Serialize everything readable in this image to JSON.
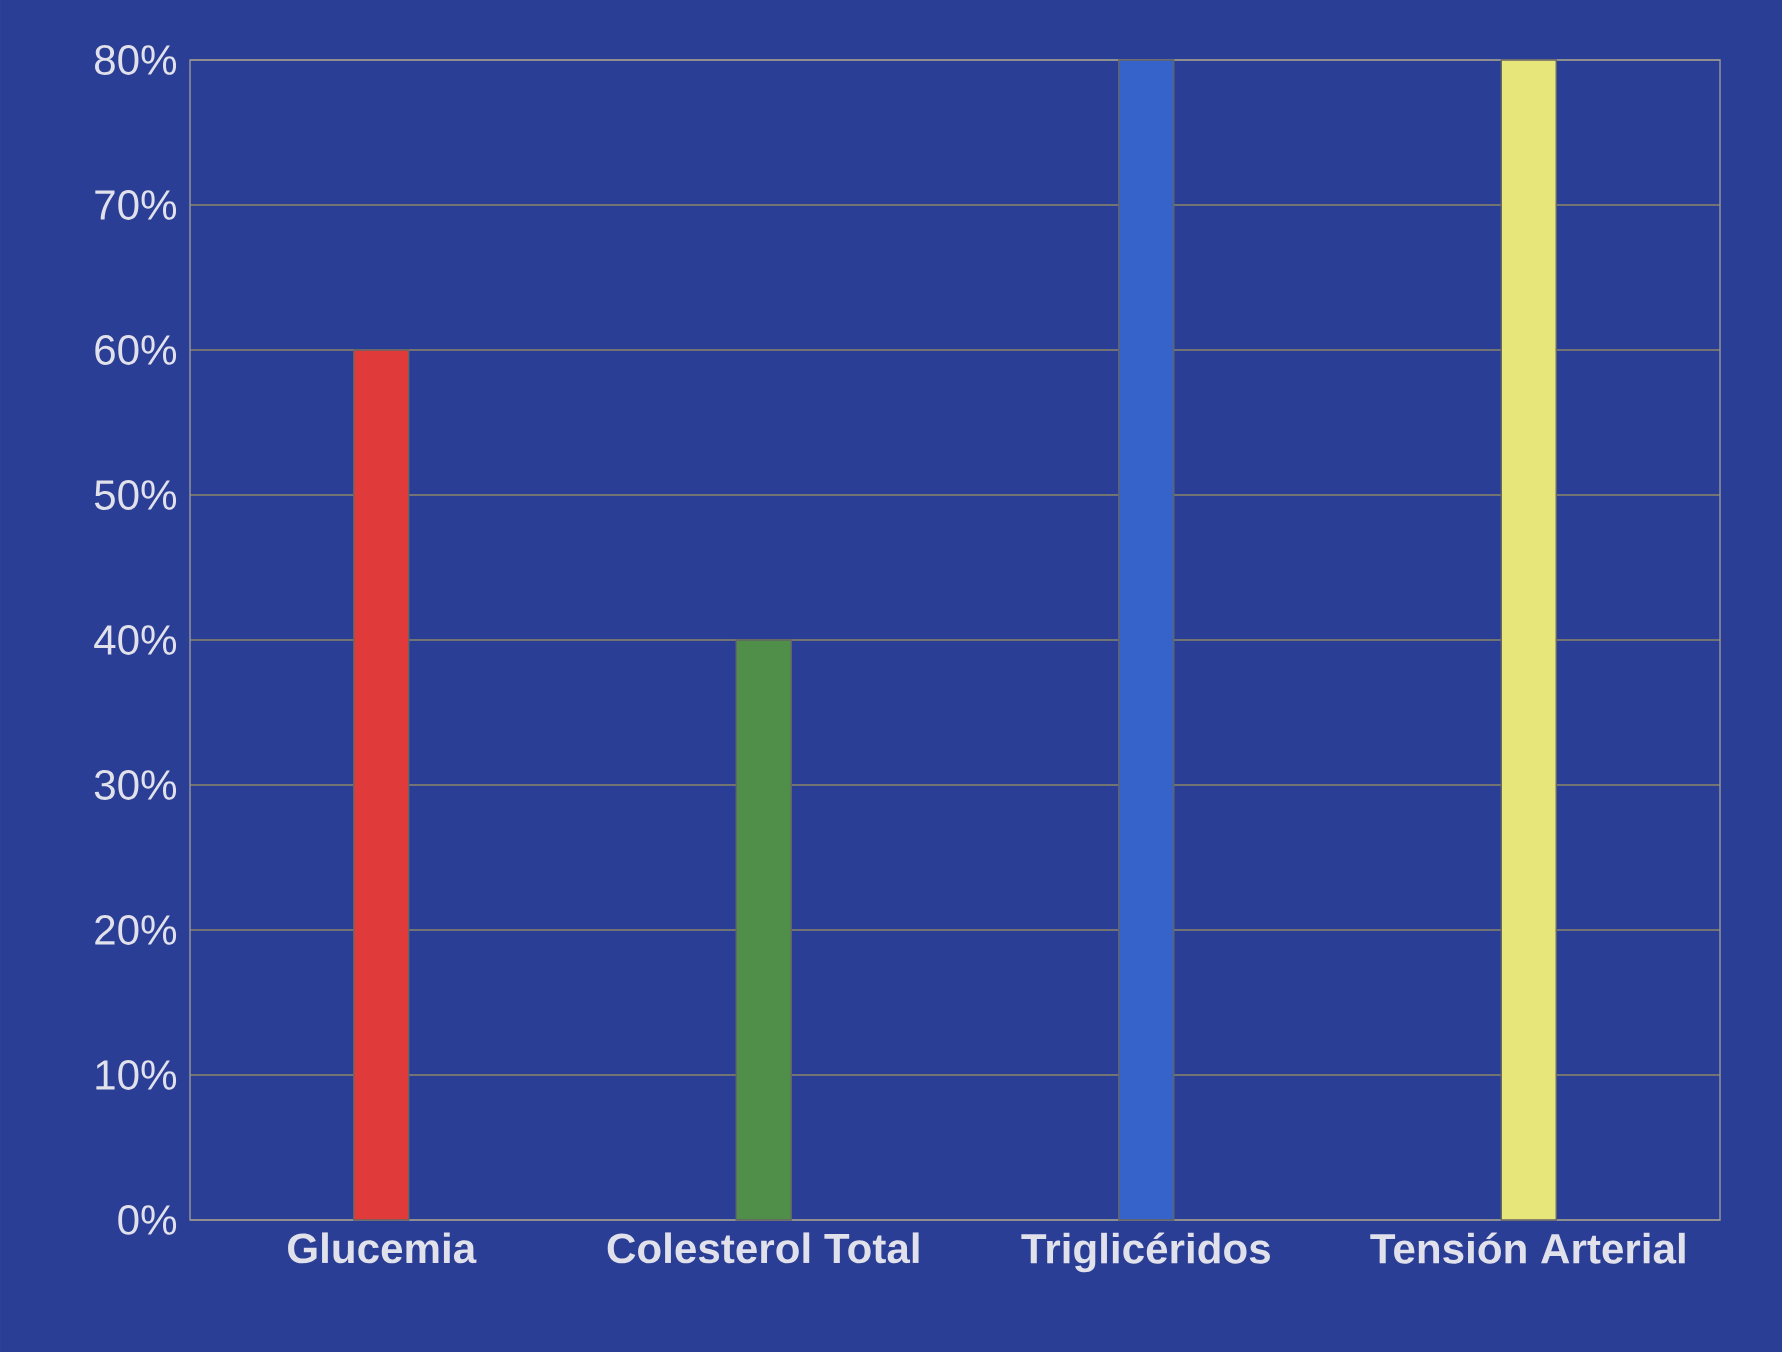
{
  "chart_data": {
    "type": "bar",
    "categories": [
      "Glucemia",
      "Colesterol Total",
      "Triglicéridos",
      "Tensión Arterial"
    ],
    "values": [
      60,
      40,
      80,
      80
    ],
    "colors": [
      "#e03a3a",
      "#4f8f4a",
      "#3563c9",
      "#e6e67a"
    ],
    "ylim": [
      0,
      80
    ],
    "yticks": [
      {
        "value": 0,
        "label": "0%"
      },
      {
        "value": 10,
        "label": "10%"
      },
      {
        "value": 20,
        "label": "20%"
      },
      {
        "value": 30,
        "label": "30%"
      },
      {
        "value": 40,
        "label": "40%"
      },
      {
        "value": 50,
        "label": "50%"
      },
      {
        "value": 60,
        "label": "60%"
      },
      {
        "value": 70,
        "label": "70%"
      },
      {
        "value": 80,
        "label": "80%"
      }
    ],
    "grid": "y"
  }
}
